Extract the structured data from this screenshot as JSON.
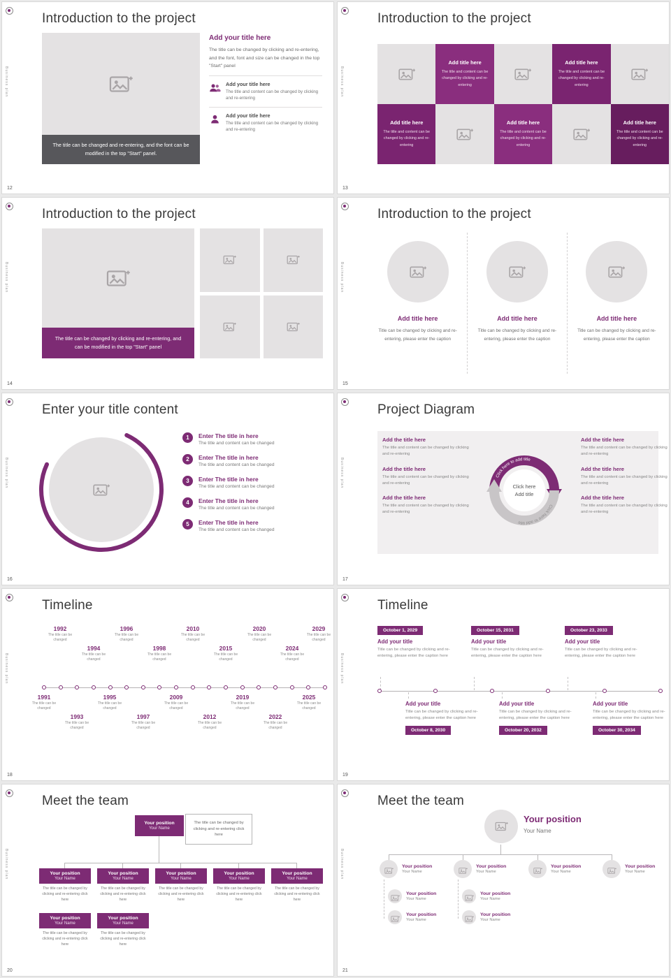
{
  "meta": {
    "accent": "#7d2b74",
    "vertical_label": "Business plan"
  },
  "s12": {
    "num": "12",
    "title": "Introduction to the project",
    "caption": "The title can be changed and re-entering, and the font can be modified in the top \"Start\" panel.",
    "heading": "Add your title here",
    "body": "The title can be changed by clicking and re-entering, and the font, font and size can be changed in the top \"Start\" panel",
    "items": [
      {
        "title": "Add your title here",
        "text": "The title and content can be changed by clicking and re-entering"
      },
      {
        "title": "Add your title here",
        "text": "The title and content can be changed by clicking and re-entering"
      }
    ]
  },
  "s13": {
    "num": "13",
    "title": "Introduction to the project",
    "cells": [
      {
        "title": "Add title here",
        "text": "The title and content can be changed by clicking and re-entering"
      },
      {
        "title": "Add title here",
        "text": "The title and content can be changed by clicking and re-entering"
      },
      {
        "title": "Add title here",
        "text": "The title and content can be changed by clicking and re-entering"
      },
      {
        "title": "Add title here",
        "text": "The title and content can be changed by clicking and re-entering"
      },
      {
        "title": "Add title here",
        "text": "The title and content can be changed by clicking and re-entering"
      }
    ]
  },
  "s14": {
    "num": "14",
    "title": "Introduction to the project",
    "caption": "The title can be changed by clicking and re-entering, and can be modified in the top \"Start\" panel"
  },
  "s15": {
    "num": "15",
    "title": "Introduction to the project",
    "cols": [
      {
        "title": "Add title here",
        "text": "Title can be changed by clicking and re-entering, please enter the caption"
      },
      {
        "title": "Add title here",
        "text": "Title can be changed by clicking and re-entering, please enter the caption"
      },
      {
        "title": "Add title here",
        "text": "Title can be changed by clicking and re-entering, please enter the caption"
      }
    ]
  },
  "s16": {
    "num": "16",
    "title": "Enter your title content",
    "items": [
      {
        "n": "1",
        "title": "Enter The title in here",
        "text": "The title and content can be changed"
      },
      {
        "n": "2",
        "title": "Enter The title in here",
        "text": "The title and content can be changed"
      },
      {
        "n": "3",
        "title": "Enter The title in here",
        "text": "The title and content can be changed"
      },
      {
        "n": "4",
        "title": "Enter The title in here",
        "text": "The title and content can be changed"
      },
      {
        "n": "5",
        "title": "Enter The title in here",
        "text": "The title and content can be changed"
      }
    ]
  },
  "s17": {
    "num": "17",
    "title": "Project Diagram",
    "center_line1": "Click here",
    "center_line2": "Add title",
    "arc_label": "Click here to add title",
    "left": [
      {
        "title": "Add the title here",
        "text": "The title and content can be changed by clicking and re-entering"
      },
      {
        "title": "Add the title here",
        "text": "The title and content can be changed by clicking and re-entering"
      },
      {
        "title": "Add the title here",
        "text": "The title and content can be changed by clicking and re-entering"
      }
    ],
    "right": [
      {
        "title": "Add the title here",
        "text": "The title and content can be changed by clicking and re-entering"
      },
      {
        "title": "Add the title here",
        "text": "The title and content can be changed by clicking and re-entering"
      },
      {
        "title": "Add the title here",
        "text": "The title and content can be changed by clicking and re-entering"
      }
    ]
  },
  "s18": {
    "num": "18",
    "title": "Timeline",
    "note": "The title can be changed",
    "years": [
      "1991",
      "1992",
      "1993",
      "1994",
      "1995",
      "1996",
      "1997",
      "1998",
      "2009",
      "2010",
      "2012",
      "2015",
      "2019",
      "2020",
      "2022",
      "2024",
      "2025",
      "2029"
    ]
  },
  "s19": {
    "num": "19",
    "title": "Timeline",
    "item_title": "Add your title",
    "item_text": "Title can be changed by clicking and re-entering, please enter the caption here",
    "top_dates": [
      "October 1, 2029",
      "October 15, 2031",
      "October 23, 2033"
    ],
    "bottom_dates": [
      "October 8, 2030",
      "October 20, 2032",
      "October 30, 2034"
    ]
  },
  "s20": {
    "num": "20",
    "title": "Meet the team",
    "position": "Your position",
    "name": "Your Name",
    "note": "The title can be changed by clicking and re-entering click here",
    "member_text": "The title can be changed by clicking and re-entering click here"
  },
  "s21": {
    "num": "21",
    "title": "Meet the team",
    "position": "Your position",
    "name": "Your Name"
  }
}
